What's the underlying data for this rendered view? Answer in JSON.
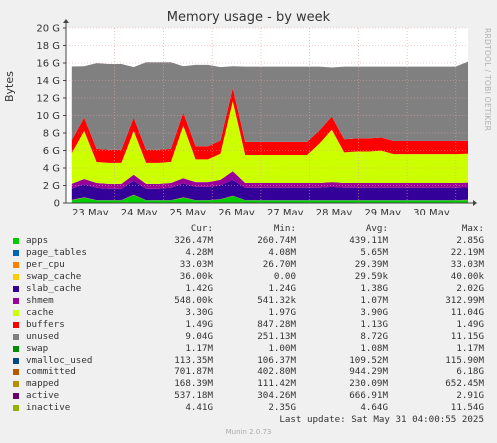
{
  "title": "Memory usage - by week",
  "side_text": "RRDTOOL / TOBI OETIKER",
  "chart_data": {
    "type": "area",
    "title": "Memory usage - by week",
    "ylabel": "Bytes",
    "xlabel": "",
    "y_ticks": [
      "0",
      "2 G",
      "4 G",
      "6 G",
      "8 G",
      "10 G",
      "12 G",
      "14 G",
      "16 G",
      "18 G",
      "20 G"
    ],
    "y_tick_values": [
      0,
      2,
      4,
      6,
      8,
      10,
      12,
      14,
      16,
      18,
      20
    ],
    "ylim": [
      0,
      20
    ],
    "y_unit": "GB",
    "x_ticks": [
      "23 May",
      "24 May",
      "25 May",
      "26 May",
      "27 May",
      "28 May",
      "29 May",
      "30 May"
    ],
    "x_tick_positions": [
      0.5,
      1.5,
      2.5,
      3.5,
      4.5,
      5.5,
      6.5,
      7.5
    ],
    "xlim": [
      0,
      8.25
    ],
    "total_memory_gb": 15.6,
    "grid": true,
    "series": [
      {
        "name": "apps",
        "color": "#00cc00",
        "values": [
          0.32,
          0.6,
          0.3,
          0.3,
          0.3,
          0.9,
          0.3,
          0.3,
          0.3,
          0.6,
          0.3,
          0.3,
          0.4,
          0.8,
          0.3,
          0.3,
          0.3,
          0.3,
          0.3,
          0.3,
          0.3,
          0.3,
          0.3,
          0.3,
          0.3,
          0.3,
          0.3,
          0.3,
          0.3,
          0.3,
          0.3,
          0.3,
          0.33
        ]
      },
      {
        "name": "page_tables",
        "color": "#0066b3",
        "values": [
          0.005,
          0.01,
          0.005,
          0.005,
          0.005,
          0.005,
          0.005,
          0.005,
          0.005,
          0.005,
          0.005,
          0.005,
          0.005,
          0.005,
          0.005,
          0.005,
          0.005,
          0.005,
          0.005,
          0.005,
          0.005,
          0.005,
          0.005,
          0.005,
          0.005,
          0.005,
          0.005,
          0.005,
          0.005,
          0.005,
          0.005,
          0.005,
          0.005
        ]
      },
      {
        "name": "per_cpu",
        "color": "#ff8000",
        "values": [
          0.03,
          0.03,
          0.03,
          0.03,
          0.03,
          0.03,
          0.03,
          0.03,
          0.03,
          0.03,
          0.03,
          0.03,
          0.03,
          0.03,
          0.03,
          0.03,
          0.03,
          0.03,
          0.03,
          0.03,
          0.03,
          0.03,
          0.03,
          0.03,
          0.03,
          0.03,
          0.03,
          0.03,
          0.03,
          0.03,
          0.03,
          0.03,
          0.03
        ]
      },
      {
        "name": "swap_cache",
        "color": "#ffcc00",
        "values": [
          0,
          0,
          0,
          0,
          0,
          0,
          0,
          0,
          0,
          0,
          0,
          0,
          0,
          0,
          0,
          0,
          0,
          0,
          0,
          0,
          0,
          0,
          0,
          0,
          0,
          0,
          0,
          0,
          0,
          0,
          0,
          0,
          0
        ]
      },
      {
        "name": "slab_cache",
        "color": "#330099",
        "values": [
          1.3,
          1.5,
          1.4,
          1.3,
          1.3,
          1.6,
          1.3,
          1.3,
          1.4,
          1.6,
          1.5,
          1.5,
          1.6,
          1.8,
          1.4,
          1.4,
          1.4,
          1.4,
          1.4,
          1.4,
          1.4,
          1.5,
          1.4,
          1.4,
          1.4,
          1.4,
          1.4,
          1.4,
          1.4,
          1.4,
          1.4,
          1.4,
          1.42
        ]
      },
      {
        "name": "shmem",
        "color": "#990099",
        "values": [
          0.55,
          0.6,
          0.55,
          0.55,
          0.55,
          0.7,
          0.55,
          0.55,
          0.55,
          0.6,
          0.55,
          0.55,
          0.6,
          1.0,
          0.55,
          0.55,
          0.55,
          0.55,
          0.55,
          0.55,
          0.55,
          0.55,
          0.55,
          0.55,
          0.55,
          0.55,
          0.55,
          0.55,
          0.55,
          0.55,
          0.55,
          0.55,
          0.55
        ]
      },
      {
        "name": "cache",
        "color": "#ccff00",
        "values": [
          3.5,
          5.5,
          2.4,
          2.4,
          2.4,
          5.0,
          2.4,
          2.4,
          2.4,
          6.0,
          2.6,
          2.6,
          3.0,
          8.0,
          3.2,
          3.2,
          3.2,
          3.2,
          3.2,
          3.2,
          4.5,
          6.0,
          3.5,
          3.6,
          3.6,
          3.7,
          3.3,
          3.3,
          3.3,
          3.3,
          3.3,
          3.3,
          3.3
        ]
      },
      {
        "name": "buffers",
        "color": "#ff0000",
        "values": [
          1.5,
          1.5,
          1.5,
          1.5,
          1.5,
          1.5,
          1.5,
          1.5,
          1.5,
          1.5,
          1.5,
          1.5,
          1.5,
          1.5,
          1.5,
          1.5,
          1.5,
          1.5,
          1.5,
          1.5,
          1.5,
          1.5,
          1.5,
          1.5,
          1.5,
          1.5,
          1.5,
          1.5,
          1.5,
          1.5,
          1.5,
          1.5,
          1.49
        ]
      },
      {
        "name": "unused",
        "color": "#808080",
        "values": [
          8.4,
          5.9,
          9.8,
          9.8,
          9.8,
          5.8,
          10.0,
          10.0,
          9.9,
          5.3,
          9.3,
          9.3,
          8.4,
          2.5,
          8.6,
          8.6,
          8.6,
          8.6,
          8.6,
          8.6,
          7.3,
          5.6,
          8.3,
          8.2,
          8.2,
          8.1,
          8.5,
          8.5,
          8.5,
          8.5,
          8.5,
          8.5,
          9.04
        ]
      }
    ]
  },
  "legend": {
    "headers": [
      "Cur:",
      "Min:",
      "Avg:",
      "Max:"
    ],
    "rows": [
      {
        "name": "apps",
        "color": "#00cc00",
        "cur": "326.47M",
        "min": "260.74M",
        "avg": "439.11M",
        "max": "2.85G"
      },
      {
        "name": "page_tables",
        "color": "#0066b3",
        "cur": "4.28M",
        "min": "4.08M",
        "avg": "5.65M",
        "max": "22.19M"
      },
      {
        "name": "per_cpu",
        "color": "#ff8000",
        "cur": "33.03M",
        "min": "26.70M",
        "avg": "29.39M",
        "max": "33.03M"
      },
      {
        "name": "swap_cache",
        "color": "#ffcc00",
        "cur": "36.00k",
        "min": "0.00",
        "avg": "29.59k",
        "max": "40.00k"
      },
      {
        "name": "slab_cache",
        "color": "#330099",
        "cur": "1.42G",
        "min": "1.24G",
        "avg": "1.38G",
        "max": "2.02G"
      },
      {
        "name": "shmem",
        "color": "#990099",
        "cur": "548.00k",
        "min": "541.32k",
        "avg": "1.07M",
        "max": "312.99M"
      },
      {
        "name": "cache",
        "color": "#ccff00",
        "cur": "3.30G",
        "min": "1.97G",
        "avg": "3.90G",
        "max": "11.04G"
      },
      {
        "name": "buffers",
        "color": "#ff0000",
        "cur": "1.49G",
        "min": "847.28M",
        "avg": "1.13G",
        "max": "1.49G"
      },
      {
        "name": "unused",
        "color": "#808080",
        "cur": "9.04G",
        "min": "251.13M",
        "avg": "8.72G",
        "max": "11.15G"
      },
      {
        "name": "swap",
        "color": "#008f00",
        "cur": "1.17M",
        "min": "1.00M",
        "avg": "1.08M",
        "max": "1.17M"
      },
      {
        "name": "vmalloc_used",
        "color": "#00487d",
        "cur": "113.35M",
        "min": "106.37M",
        "avg": "109.52M",
        "max": "115.90M"
      },
      {
        "name": "committed",
        "color": "#b35a00",
        "cur": "701.87M",
        "min": "402.80M",
        "avg": "944.29M",
        "max": "6.18G"
      },
      {
        "name": "mapped",
        "color": "#b38f00",
        "cur": "168.39M",
        "min": "111.42M",
        "avg": "230.09M",
        "max": "652.45M"
      },
      {
        "name": "active",
        "color": "#6b006b",
        "cur": "537.18M",
        "min": "304.26M",
        "avg": "666.91M",
        "max": "2.91G"
      },
      {
        "name": "inactive",
        "color": "#8fb300",
        "cur": "4.41G",
        "min": "2.35G",
        "avg": "4.64G",
        "max": "11.54G"
      }
    ]
  },
  "last_update": "Last update: Sat May 31 04:00:55 2025",
  "footer": "Munin 2.0.73"
}
